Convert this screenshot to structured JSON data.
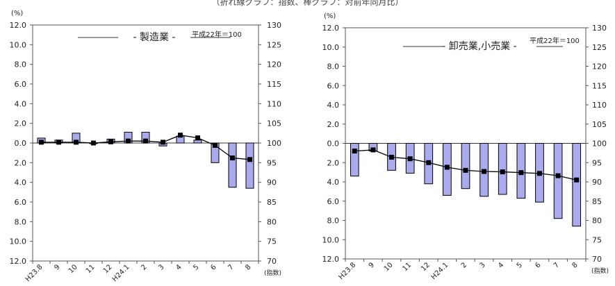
{
  "header": {
    "text": "（折れ線グラフ：指数、棒グラフ：対前年同月比）"
  },
  "chart_data": [
    {
      "type": "bar",
      "title": "- 製造業 -",
      "base_note": "平成22年＝100",
      "left_axis_unit": "(%)",
      "right_axis_unit": "(指数)",
      "categories": [
        "H23.8",
        "9",
        "10",
        "11",
        "12",
        "H24.1",
        "2",
        "3",
        "4",
        "5",
        "6",
        "7",
        "8"
      ],
      "left_ticks": [
        "12.0",
        "10.0",
        "8.0",
        "6.0",
        "4.0",
        "2.0",
        "0.0",
        "2.0",
        "4.0",
        "6.0",
        "8.0",
        "10.0",
        "12.0"
      ],
      "right_ticks": [
        "130",
        "125",
        "120",
        "115",
        "110",
        "105",
        "100",
        "95",
        "90",
        "85",
        "80",
        "75",
        "70"
      ],
      "ylim": [
        -12,
        12
      ],
      "y2lim": [
        70,
        130
      ],
      "series": [
        {
          "name": "対前年同月比",
          "type": "bar",
          "color": "#aaaaee",
          "values": [
            0.5,
            0.3,
            1.0,
            0.0,
            0.4,
            1.1,
            1.1,
            -0.3,
            0.7,
            0.3,
            -2.0,
            -4.5,
            -4.6
          ]
        },
        {
          "name": "指数",
          "type": "line",
          "color": "#000000",
          "values": [
            100.2,
            100.2,
            100.2,
            100.0,
            100.3,
            100.5,
            100.5,
            100.2,
            102.0,
            101.3,
            99.4,
            96.2,
            95.8
          ]
        }
      ]
    },
    {
      "type": "bar",
      "title": "- 卸売業,小売業 -",
      "base_note": "平成22年＝100",
      "left_axis_unit": "(%)",
      "right_axis_unit": "(指数)",
      "categories": [
        "H23.8",
        "9",
        "10",
        "11",
        "12",
        "H24.1",
        "2",
        "3",
        "4",
        "5",
        "6",
        "7",
        "8"
      ],
      "left_ticks": [
        "12.0",
        "10.0",
        "8.0",
        "6.0",
        "4.0",
        "2.0",
        "0.0",
        "2.0",
        "4.0",
        "6.0",
        "8.0",
        "10.0",
        "12.0"
      ],
      "right_ticks": [
        "130",
        "125",
        "120",
        "115",
        "110",
        "105",
        "100",
        "95",
        "90",
        "85",
        "80",
        "75",
        "70"
      ],
      "ylim": [
        -12,
        12
      ],
      "y2lim": [
        70,
        130
      ],
      "series": [
        {
          "name": "対前年同月比",
          "type": "bar",
          "color": "#aaaaee",
          "values": [
            -3.4,
            -0.8,
            -2.8,
            -3.1,
            -4.2,
            -5.4,
            -4.7,
            -5.5,
            -5.3,
            -5.7,
            -6.1,
            -7.8,
            -8.6
          ]
        },
        {
          "name": "指数",
          "type": "line",
          "color": "#000000",
          "values": [
            98.0,
            98.3,
            96.4,
            96.0,
            95.0,
            93.8,
            93.0,
            92.7,
            92.6,
            92.4,
            92.2,
            91.6,
            90.5
          ]
        }
      ]
    }
  ]
}
